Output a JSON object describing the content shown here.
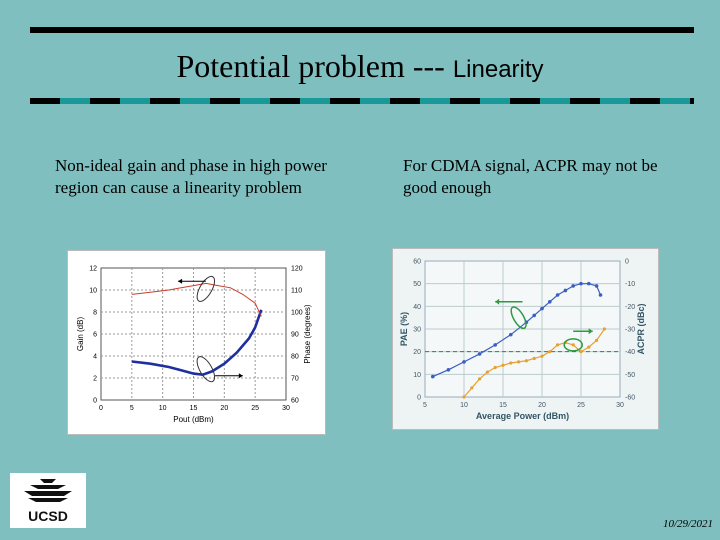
{
  "slide": {
    "title_main": "Potential problem ---",
    "title_sub": "Linearity",
    "bullet_left": "Non-ideal gain and phase in high power region can cause a linearity problem",
    "bullet_right": "For CDMA signal, ACPR may not be good enough",
    "logo_text": "UCSD",
    "date": "10/29/2021"
  },
  "colors": {
    "background": "#7fbfbf",
    "rule_dark": "#000000",
    "rule_accent": "#1a9999",
    "gain_curve": "#1f2fa0",
    "phase_curve": "#cc3b2b",
    "pae_curve": "#3a5fc0",
    "acpr_curve": "#e8a030",
    "threshold_line": "#1a8a6a",
    "arrow_green": "#2f9a40"
  },
  "chart_data": [
    {
      "type": "line",
      "title": "",
      "xlabel": "Pout (dBm)",
      "ylabel": "Gain (dB)",
      "y2label": "Phase (degrees)",
      "xlim": [
        0,
        30
      ],
      "ylim": [
        0,
        12
      ],
      "y2lim": [
        60,
        120
      ],
      "x_ticks": [
        "0",
        "5",
        "10",
        "15",
        "20",
        "25",
        "30"
      ],
      "y_ticks": [
        "0",
        "2",
        "4",
        "6",
        "8",
        "10",
        "12"
      ],
      "y2_ticks": [
        "60",
        "70",
        "80",
        "90",
        "100",
        "110",
        "120"
      ],
      "series": [
        {
          "axis": "left",
          "x": [
            5,
            8,
            11,
            13,
            15,
            16.5,
            18,
            20,
            22,
            24,
            25,
            26
          ],
          "values": [
            3.5,
            3.3,
            3.0,
            2.7,
            2.4,
            2.3,
            2.6,
            3.3,
            4.3,
            5.6,
            6.6,
            8.2
          ]
        },
        {
          "axis": "right",
          "x": [
            5,
            8,
            11,
            13,
            15,
            17,
            19,
            21,
            23,
            25,
            26
          ],
          "values": [
            108,
            109,
            110,
            111,
            112,
            113,
            112,
            111,
            108,
            104,
            98
          ]
        }
      ],
      "grid": true
    },
    {
      "type": "line",
      "title": "",
      "xlabel": "Average Power (dBm)",
      "ylabel": "PAE (%)",
      "y2label": "ACPR (dBc)",
      "xlim": [
        5,
        30
      ],
      "ylim": [
        0,
        60
      ],
      "y2lim": [
        -60,
        0
      ],
      "x_ticks": [
        "5",
        "10",
        "15",
        "20",
        "25",
        "30"
      ],
      "y_ticks": [
        "0",
        "10",
        "20",
        "30",
        "40",
        "50",
        "60"
      ],
      "y2_ticks": [
        "0",
        "-10",
        "-20",
        "-30",
        "-40",
        "-50",
        "-60"
      ],
      "threshold_acpr": -40,
      "series": [
        {
          "axis": "left",
          "x": [
            6,
            8,
            10,
            12,
            14,
            16,
            18,
            19,
            20,
            21,
            22,
            23,
            24,
            25,
            26,
            27,
            27.5
          ],
          "values": [
            9,
            12,
            15.5,
            19,
            23,
            27.5,
            33,
            36,
            39,
            42,
            45,
            47,
            49,
            50,
            50,
            49,
            45
          ]
        },
        {
          "axis": "right",
          "x": [
            10,
            11,
            12,
            13,
            14,
            15,
            16,
            17,
            18,
            19,
            20,
            21,
            22,
            23,
            24,
            25,
            26,
            27,
            28
          ],
          "values": [
            -60,
            -56,
            -52,
            -49,
            -47,
            -46,
            -45,
            -44.5,
            -44,
            -43,
            -42,
            -40,
            -37,
            -36,
            -37,
            -40,
            -38,
            -35,
            -30
          ]
        }
      ],
      "grid": true
    }
  ]
}
